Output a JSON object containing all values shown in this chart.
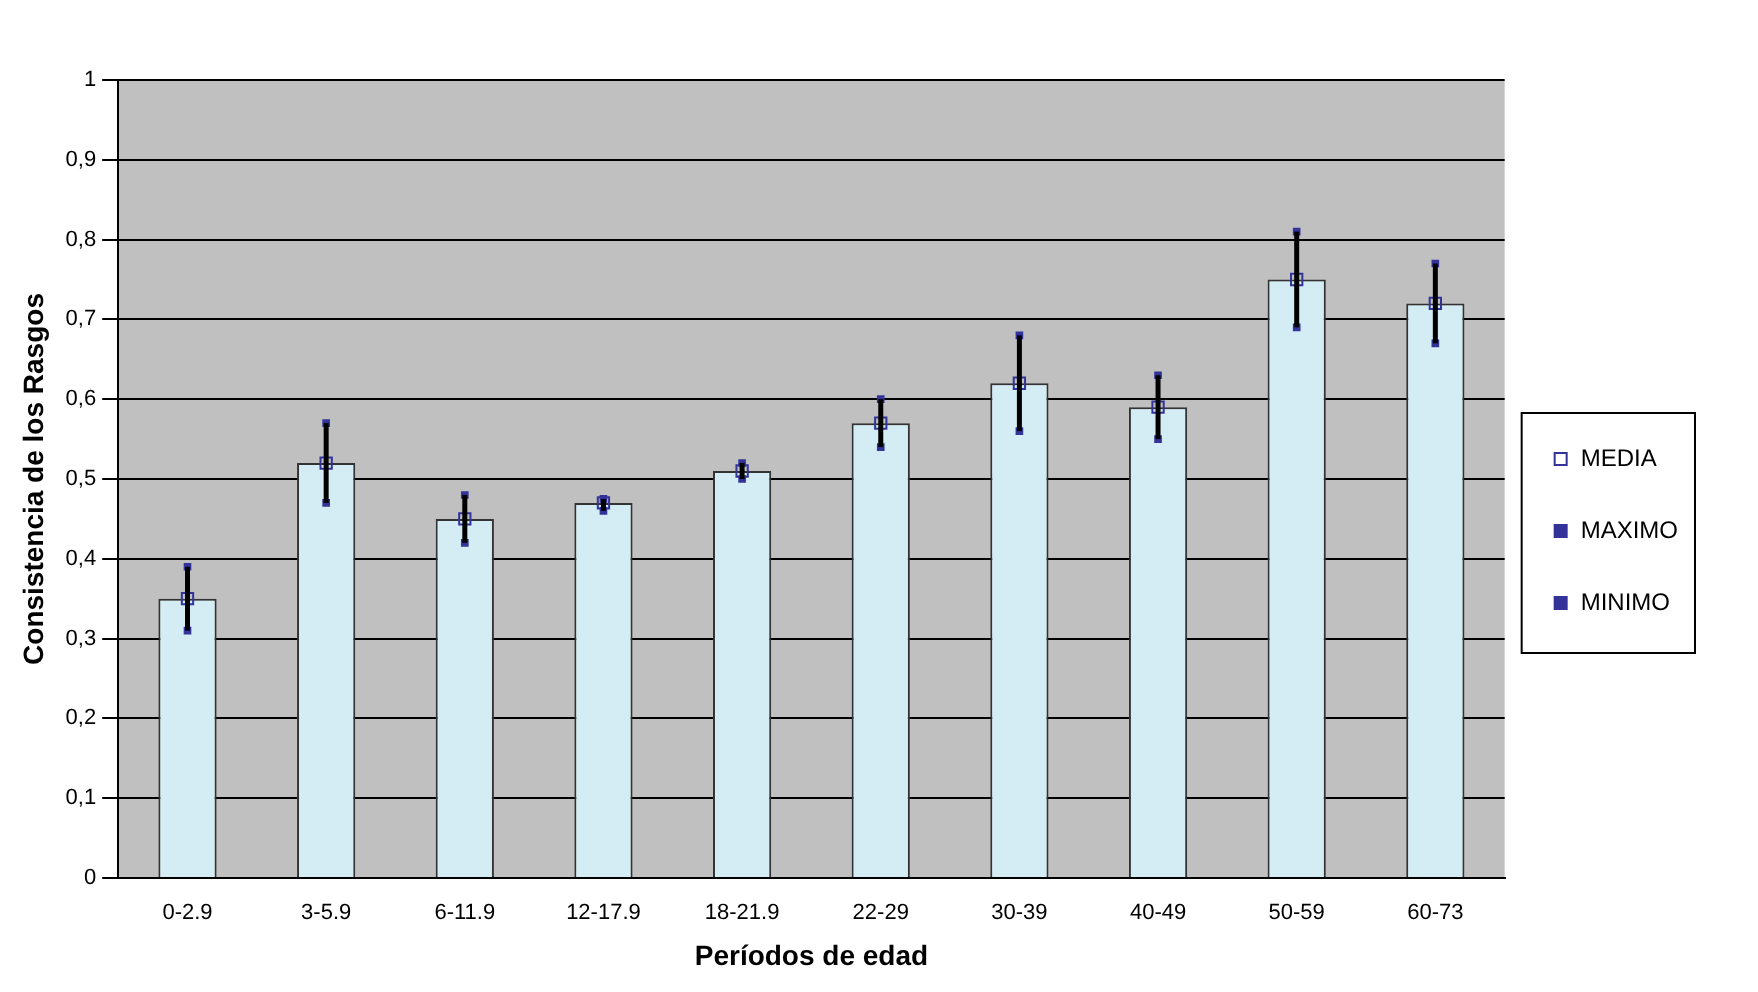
{
  "chart_data": {
    "type": "bar",
    "xlabel": "Períodos de edad",
    "ylabel": "Consistencia de los Rasgos",
    "categories": [
      "0-2.9",
      "3-5.9",
      "6-11.9",
      "12-17.9",
      "18-21.9",
      "22-29",
      "30-39",
      "40-49",
      "50-59",
      "60-73"
    ],
    "series": [
      {
        "color": "#d4ecf4",
        "values": [
          0.35,
          0.52,
          0.45,
          0.47,
          0.51,
          0.57,
          0.62,
          0.59,
          0.75,
          0.72
        ]
      },
      {
        "type": "scatter",
        "name": "MEDIA",
        "color": "#333399",
        "marker": "square",
        "values": [
          0.35,
          0.52,
          0.45,
          0.47,
          0.51,
          0.57,
          0.62,
          0.59,
          0.75,
          0.72
        ]
      },
      {
        "type": "scatter",
        "name": "MAXIMO",
        "color": "#333399",
        "marker": "square",
        "values": [
          0.39,
          0.57,
          0.48,
          0.475,
          0.52,
          0.6,
          0.68,
          0.63,
          0.81,
          0.77
        ]
      },
      {
        "type": "scatter",
        "name": "MINIMO",
        "color": "#333399",
        "marker": "square",
        "values": [
          0.31,
          0.47,
          0.42,
          0.46,
          0.5,
          0.54,
          0.56,
          0.55,
          0.69,
          0.67
        ]
      }
    ],
    "ylim": [
      0,
      1
    ],
    "yticks": [
      0,
      {
        "value": 0.1,
        "label": "0,1"
      },
      {
        "value": 0.2,
        "label": "0,2"
      },
      {
        "value": 0.3,
        "label": "0,3"
      },
      {
        "value": 0.4,
        "label": "0,4"
      },
      {
        "value": 0.5,
        "label": "0,5"
      },
      {
        "value": 0.6,
        "label": "0,6"
      },
      {
        "value": 0.7,
        "label": "0,7"
      },
      {
        "value": 0.8,
        "label": "0,8"
      },
      {
        "value": 0.9,
        "label": "0,9"
      },
      1
    ],
    "grid": "y",
    "legend": "right"
  }
}
